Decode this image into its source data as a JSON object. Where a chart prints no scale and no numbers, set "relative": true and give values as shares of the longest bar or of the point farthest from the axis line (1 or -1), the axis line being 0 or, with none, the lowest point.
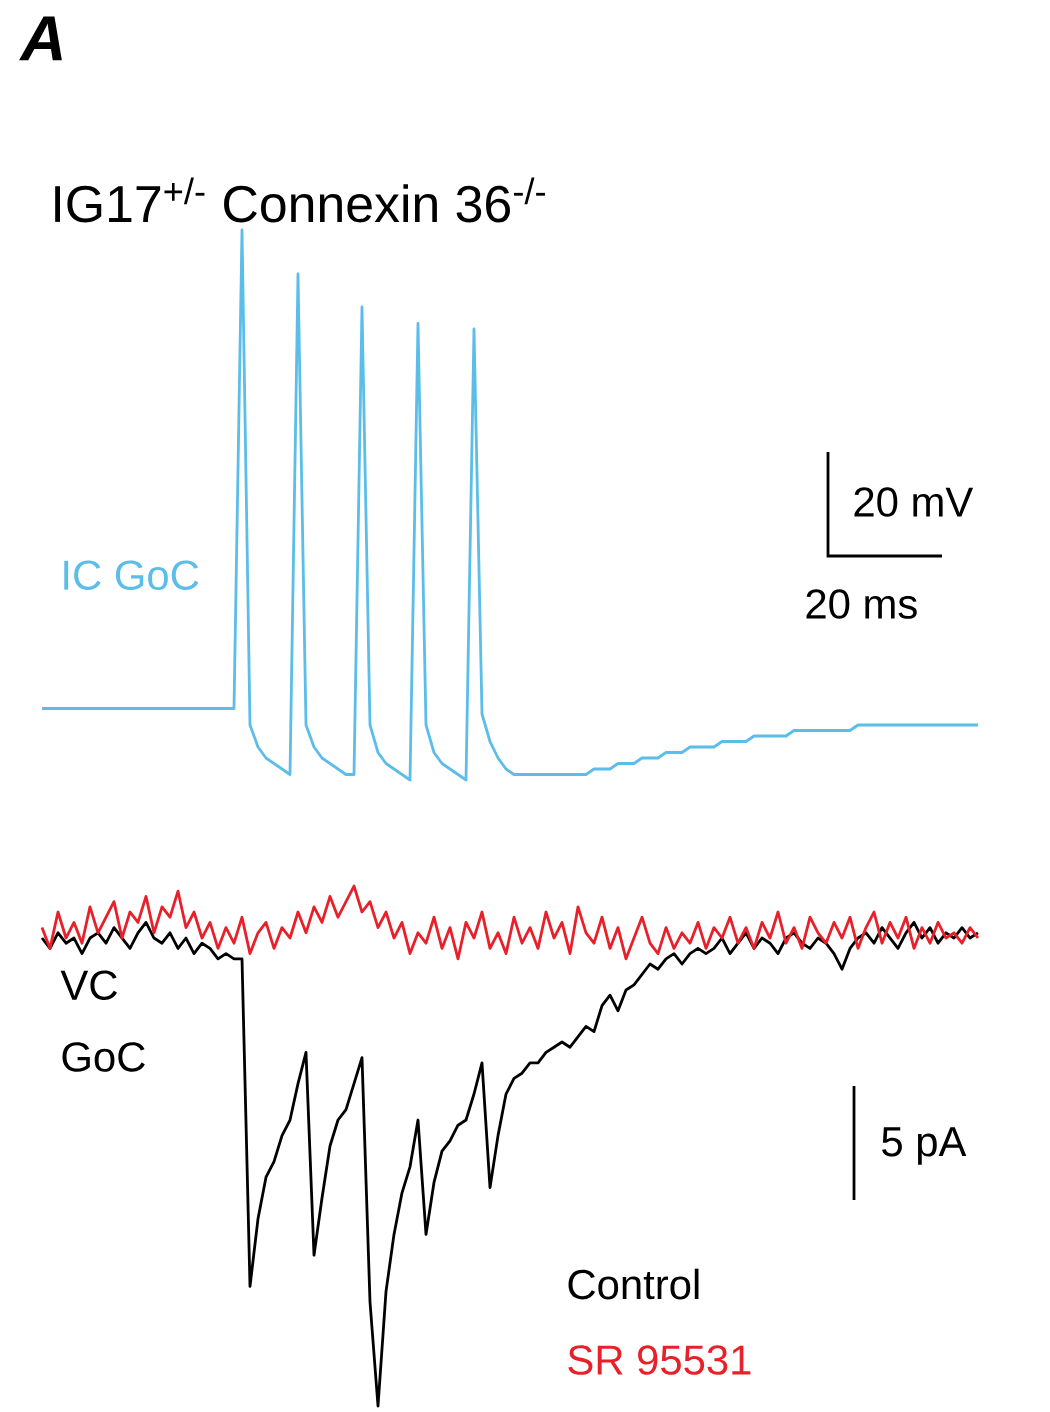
{
  "chart_data": [
    {
      "type": "line",
      "relative": true,
      "title": "IG17$^{+/-}$ Connexin 36$^{-/-}$",
      "ylabel": "IC GoC",
      "annotations": [
        "A",
        "20 mV",
        "20 ms"
      ],
      "categories": [
        null,
        null,
        null,
        null,
        null,
        null,
        null,
        null,
        null,
        null,
        null,
        null,
        null,
        null,
        null,
        null,
        null,
        null,
        null,
        null,
        null,
        null,
        null,
        null,
        null,
        null,
        null,
        null,
        null,
        null,
        null,
        null,
        null,
        null,
        null,
        null,
        null,
        null,
        null,
        null,
        null,
        null,
        null,
        null,
        null,
        null,
        null,
        null,
        null,
        null,
        null,
        null,
        null,
        null,
        null,
        null,
        null,
        null,
        null,
        null,
        null,
        null,
        null,
        null,
        null,
        null,
        null,
        null,
        null,
        null,
        null,
        null,
        null,
        null,
        null,
        null,
        null,
        null,
        null,
        null,
        null,
        null,
        null,
        null,
        null,
        null,
        null,
        null,
        null,
        null,
        null,
        null,
        null,
        null,
        null,
        null,
        null,
        null,
        null,
        null,
        null,
        null,
        null,
        null,
        null,
        null,
        null,
        null,
        null,
        null,
        null,
        null,
        null,
        null,
        null,
        null,
        null,
        null
      ],
      "series": [
        {
          "color": "#5bbde8",
          "values": [
            0.13,
            0.13,
            0.13,
            0.13,
            0.13,
            0.13,
            0.13,
            0.13,
            0.13,
            0.13,
            0.13,
            0.13,
            0.13,
            0.13,
            0.13,
            0.13,
            0.13,
            0.13,
            0.13,
            0.13,
            0.13,
            0.13,
            0.13,
            0.13,
            0.13,
            1.0,
            0.1,
            0.06,
            0.04,
            0.03,
            0.02,
            0.01,
            0.92,
            0.1,
            0.06,
            0.04,
            0.03,
            0.02,
            0.01,
            0.01,
            0.86,
            0.1,
            0.05,
            0.03,
            0.02,
            0.01,
            0.0,
            0.83,
            0.1,
            0.05,
            0.03,
            0.02,
            0.01,
            0.0,
            0.82,
            0.12,
            0.07,
            0.04,
            0.02,
            0.01,
            0.01,
            0.01,
            0.01,
            0.01,
            0.01,
            0.01,
            0.01,
            0.01,
            0.01,
            0.02,
            0.02,
            0.02,
            0.03,
            0.03,
            0.03,
            0.04,
            0.04,
            0.04,
            0.05,
            0.05,
            0.05,
            0.06,
            0.06,
            0.06,
            0.06,
            0.07,
            0.07,
            0.07,
            0.07,
            0.08,
            0.08,
            0.08,
            0.08,
            0.08,
            0.09,
            0.09,
            0.09,
            0.09,
            0.09,
            0.09,
            0.09,
            0.09,
            0.1,
            0.1,
            0.1,
            0.1,
            0.1,
            0.1,
            0.1,
            0.1,
            0.1,
            0.1,
            0.1,
            0.1,
            0.1,
            0.1,
            0.1,
            0.1
          ]
        }
      ]
    },
    {
      "type": "line",
      "relative": true,
      "ylabel": "VC GoC",
      "annotations": [
        "5 pA"
      ],
      "categories": [
        null,
        null,
        null,
        null,
        null,
        null,
        null,
        null,
        null,
        null,
        null,
        null,
        null,
        null,
        null,
        null,
        null,
        null,
        null,
        null,
        null,
        null,
        null,
        null,
        null,
        null,
        null,
        null,
        null,
        null,
        null,
        null,
        null,
        null,
        null,
        null,
        null,
        null,
        null,
        null,
        null,
        null,
        null,
        null,
        null,
        null,
        null,
        null,
        null,
        null,
        null,
        null,
        null,
        null,
        null,
        null,
        null,
        null,
        null,
        null,
        null,
        null,
        null,
        null,
        null,
        null,
        null,
        null,
        null,
        null,
        null,
        null,
        null,
        null,
        null,
        null,
        null,
        null,
        null,
        null,
        null,
        null,
        null,
        null,
        null,
        null,
        null,
        null,
        null,
        null,
        null,
        null,
        null,
        null,
        null,
        null,
        null,
        null,
        null,
        null,
        null,
        null,
        null,
        null,
        null,
        null,
        null,
        null,
        null,
        null,
        null,
        null,
        null,
        null,
        null,
        null,
        null,
        null
      ],
      "series": [
        {
          "name": "Control",
          "color": "#000000",
          "values": [
            0.9,
            0.88,
            0.91,
            0.89,
            0.9,
            0.87,
            0.9,
            0.91,
            0.89,
            0.92,
            0.9,
            0.88,
            0.91,
            0.93,
            0.9,
            0.89,
            0.91,
            0.88,
            0.9,
            0.87,
            0.89,
            0.88,
            0.86,
            0.87,
            0.86,
            0.86,
            0.23,
            0.36,
            0.44,
            0.47,
            0.52,
            0.55,
            0.62,
            0.68,
            0.29,
            0.4,
            0.5,
            0.55,
            0.57,
            0.62,
            0.67,
            0.2,
            0.0,
            0.22,
            0.33,
            0.41,
            0.46,
            0.55,
            0.33,
            0.43,
            0.49,
            0.51,
            0.54,
            0.55,
            0.6,
            0.66,
            0.42,
            0.52,
            0.6,
            0.63,
            0.64,
            0.66,
            0.66,
            0.68,
            0.69,
            0.7,
            0.69,
            0.71,
            0.73,
            0.72,
            0.77,
            0.79,
            0.76,
            0.8,
            0.81,
            0.83,
            0.85,
            0.84,
            0.86,
            0.87,
            0.85,
            0.87,
            0.88,
            0.87,
            0.88,
            0.9,
            0.87,
            0.89,
            0.91,
            0.88,
            0.9,
            0.89,
            0.87,
            0.9,
            0.91,
            0.89,
            0.88,
            0.9,
            0.89,
            0.87,
            0.84,
            0.88,
            0.9,
            0.91,
            0.89,
            0.92,
            0.9,
            0.88,
            0.91,
            0.93,
            0.9,
            0.92,
            0.89,
            0.91,
            0.9,
            0.92,
            0.9,
            0.91
          ]
        },
        {
          "name": "SR 95531",
          "color": "#e8202a",
          "values": [
            0.92,
            0.88,
            0.95,
            0.9,
            0.93,
            0.89,
            0.96,
            0.91,
            0.94,
            0.97,
            0.9,
            0.95,
            0.93,
            0.98,
            0.91,
            0.96,
            0.94,
            0.99,
            0.92,
            0.95,
            0.9,
            0.93,
            0.88,
            0.92,
            0.89,
            0.94,
            0.87,
            0.91,
            0.93,
            0.88,
            0.92,
            0.9,
            0.95,
            0.91,
            0.96,
            0.93,
            0.98,
            0.94,
            0.97,
            1.0,
            0.95,
            0.97,
            0.92,
            0.95,
            0.9,
            0.93,
            0.87,
            0.91,
            0.89,
            0.94,
            0.88,
            0.92,
            0.86,
            0.93,
            0.9,
            0.95,
            0.88,
            0.91,
            0.87,
            0.94,
            0.89,
            0.92,
            0.88,
            0.95,
            0.9,
            0.93,
            0.87,
            0.96,
            0.91,
            0.89,
            0.94,
            0.88,
            0.92,
            0.86,
            0.9,
            0.94,
            0.89,
            0.87,
            0.92,
            0.88,
            0.91,
            0.89,
            0.93,
            0.88,
            0.92,
            0.9,
            0.94,
            0.89,
            0.92,
            0.88,
            0.93,
            0.9,
            0.95,
            0.89,
            0.92,
            0.88,
            0.94,
            0.91,
            0.89,
            0.93,
            0.9,
            0.94,
            0.88,
            0.92,
            0.95,
            0.89,
            0.93,
            0.9,
            0.94,
            0.88,
            0.92,
            0.89,
            0.93,
            0.9,
            0.91,
            0.89,
            0.92,
            0.9
          ]
        }
      ]
    }
  ]
}
